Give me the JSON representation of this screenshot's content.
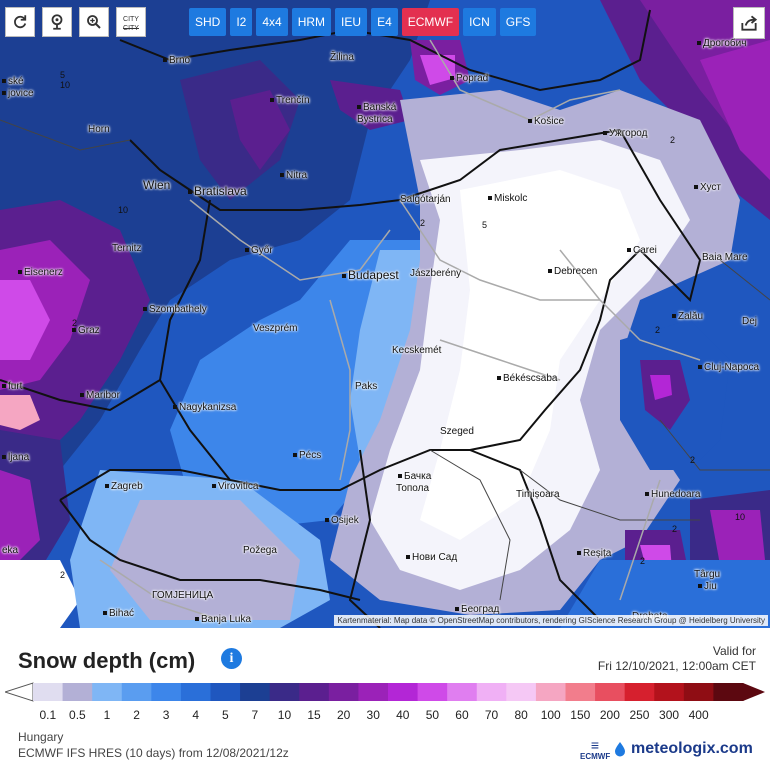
{
  "toolbar": {
    "controls": [
      {
        "name": "refresh-button",
        "icon": "refresh-icon"
      },
      {
        "name": "location-button",
        "icon": "location-pin-icon"
      },
      {
        "name": "zoom-button",
        "icon": "magnifier-zoom-icon"
      }
    ],
    "city_toggle": {
      "line1": "CITY",
      "line2": "CITY"
    },
    "model_tabs": [
      "SHD",
      "I2",
      "4x4",
      "HRM",
      "IEU",
      "E4",
      "ECMWF",
      "ICN",
      "GFS"
    ],
    "active_model": "ECMWF",
    "share_icon": "share-icon"
  },
  "map": {
    "cities": [
      {
        "name": "Brno",
        "big": false
      },
      {
        "name": "Žilina",
        "big": false
      },
      {
        "name": "Poprad",
        "big": false
      },
      {
        "name": "Дрогобич",
        "big": false
      },
      {
        "name": "Horn",
        "big": false
      },
      {
        "name": "Trenčín",
        "big": false
      },
      {
        "name": "Banská",
        "big": false
      },
      {
        "name": "Bystrica",
        "big": false
      },
      {
        "name": "Košice",
        "big": false
      },
      {
        "name": "Ужгород",
        "big": false
      },
      {
        "name": "Wien",
        "big": true
      },
      {
        "name": "Bratislava",
        "big": true
      },
      {
        "name": "Nitra",
        "big": false
      },
      {
        "name": "Salgótarján",
        "big": false
      },
      {
        "name": "Miskolc",
        "big": false
      },
      {
        "name": "Хуст",
        "big": false
      },
      {
        "name": "Ternitz",
        "big": false
      },
      {
        "name": "Győr",
        "big": false
      },
      {
        "name": "Budapest",
        "big": true
      },
      {
        "name": "Jászberény",
        "big": false
      },
      {
        "name": "Debrecen",
        "big": false
      },
      {
        "name": "Carei",
        "big": false
      },
      {
        "name": "Baia Mare",
        "big": false
      },
      {
        "name": "Eisenerz",
        "big": false
      },
      {
        "name": "Szombathely",
        "big": false
      },
      {
        "name": "Veszprém",
        "big": false
      },
      {
        "name": "Zalău",
        "big": false
      },
      {
        "name": "Graz",
        "big": false
      },
      {
        "name": "Kecskemét",
        "big": false
      },
      {
        "name": "Cluj-Napoca",
        "big": false
      },
      {
        "name": "Maribor",
        "big": false
      },
      {
        "name": "Paks",
        "big": false
      },
      {
        "name": "Békéscsaba",
        "big": false
      },
      {
        "name": "Nagykanizsa",
        "big": false
      },
      {
        "name": "Szeged",
        "big": false
      },
      {
        "name": "Pécs",
        "big": false
      },
      {
        "name": "Бачка",
        "big": false
      },
      {
        "name": "Топола",
        "big": false
      },
      {
        "name": "Zagreb",
        "big": false
      },
      {
        "name": "Virovitica",
        "big": false
      },
      {
        "name": "Timișoara",
        "big": false
      },
      {
        "name": "Hunedoara",
        "big": false
      },
      {
        "name": "Osijek",
        "big": false
      },
      {
        "name": "Požega",
        "big": false
      },
      {
        "name": "Нови Сад",
        "big": false
      },
      {
        "name": "Reșița",
        "big": false
      },
      {
        "name": "Târgu",
        "big": false
      },
      {
        "name": "Jiu",
        "big": false
      },
      {
        "name": "Bihać",
        "big": false
      },
      {
        "name": "ГОМЈЕНИЦА",
        "big": false
      },
      {
        "name": "Banja Luka",
        "big": false
      },
      {
        "name": "Београд",
        "big": false
      },
      {
        "name": "Drobeta",
        "big": false
      },
      {
        "name": "ljana",
        "big": false
      },
      {
        "name": "furt",
        "big": false
      },
      {
        "name": "eka",
        "big": false
      },
      {
        "name": "ské",
        "big": false
      },
      {
        "name": "jovice",
        "big": false
      },
      {
        "name": "Dej",
        "big": false
      }
    ],
    "contour_labels": [
      "10",
      "2",
      "5",
      "2",
      "10",
      "2",
      "2",
      "5",
      "2",
      "2",
      "10",
      "2",
      "2"
    ],
    "attribution": "Kartenmaterial: Map data © OpenStreetMap contributors, rendering GIScience Research Group @ Heidelberg University"
  },
  "legend": {
    "title": "Snow depth (cm)",
    "info_icon": "info-icon",
    "valid_label": "Valid for",
    "valid_date": "Fri 12/10/2021, 12:00am CET",
    "ticks": [
      "0.1",
      "0.5",
      "1",
      "2",
      "3",
      "4",
      "5",
      "7",
      "10",
      "15",
      "20",
      "30",
      "40",
      "50",
      "60",
      "70",
      "80",
      "100",
      "150",
      "200",
      "250",
      "300",
      "400"
    ],
    "colors": [
      "#e0ddf0",
      "#b3b0d6",
      "#7fb6f5",
      "#5a9df0",
      "#3d86ea",
      "#2a6fd9",
      "#1f57bf",
      "#1c3f93",
      "#3a2a88",
      "#5b1f8f",
      "#7a1fa0",
      "#9b22b8",
      "#b326d6",
      "#cf4ae8",
      "#e07ef0",
      "#f0b0f5",
      "#f5c8f5",
      "#f5a6c2",
      "#f27d8c",
      "#e84f60",
      "#d6202e",
      "#b3121c",
      "#8f0d14",
      "#5c0810"
    ],
    "region": "Hungary",
    "model_run": "ECMWF IFS HRES (10 days) from 12/08/2021/12z",
    "ecmwf_text": "ECMWF",
    "brand": "meteologix.com"
  }
}
